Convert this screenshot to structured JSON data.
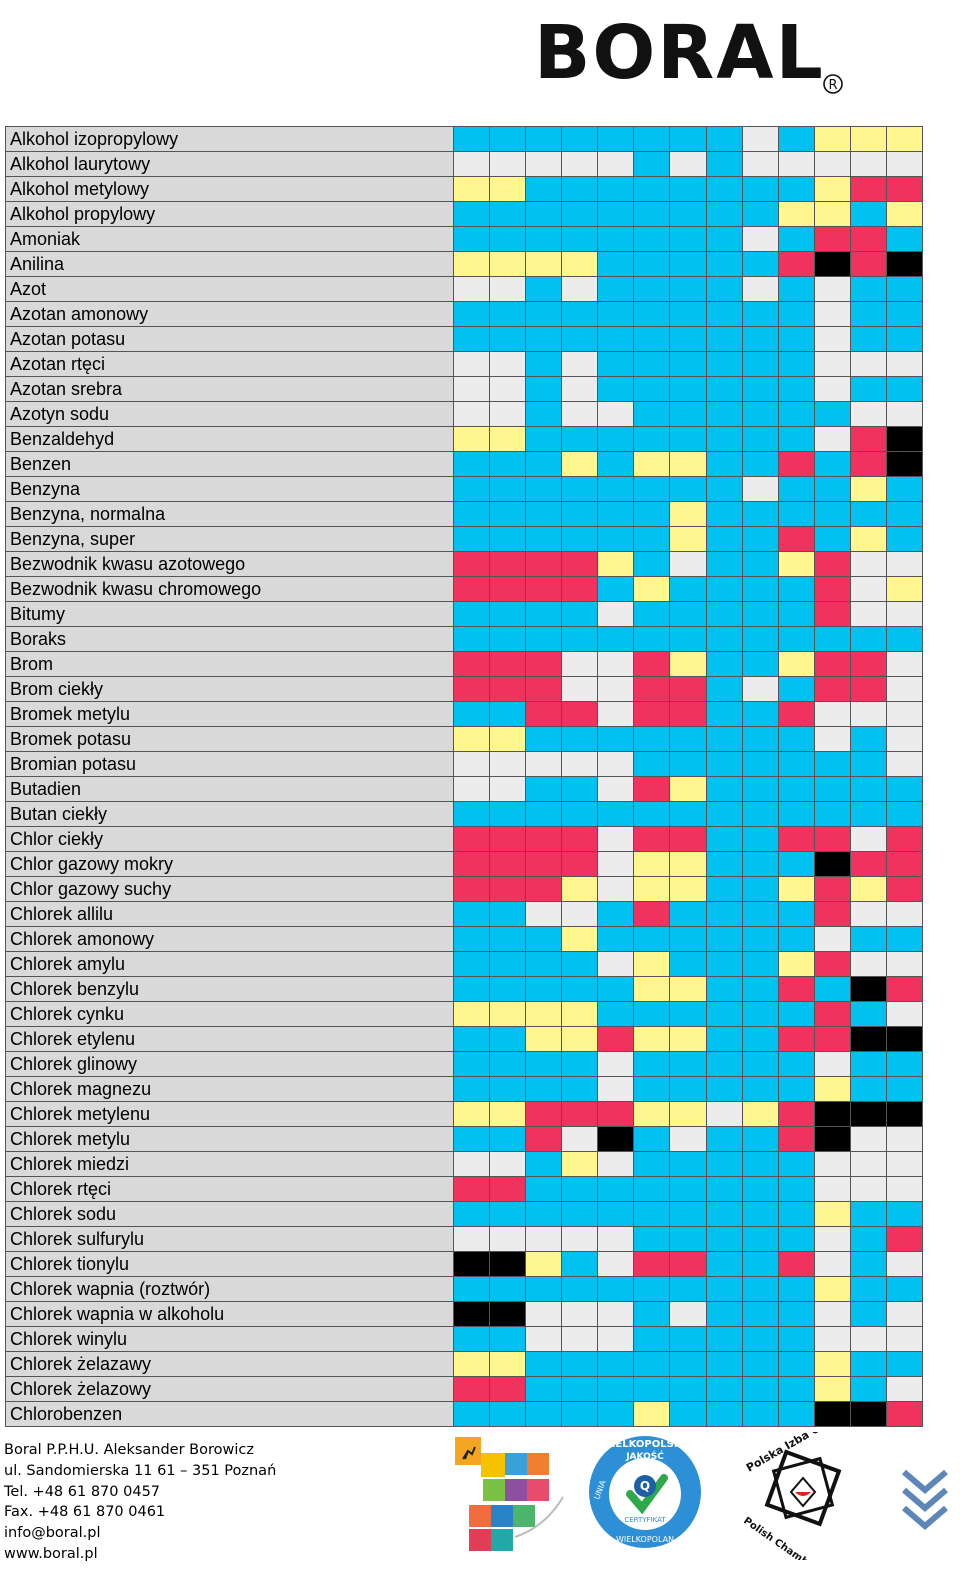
{
  "header": {
    "logo_text": "BORAL",
    "logo_mark": "®"
  },
  "palette": {
    "B": "#00c1ef",
    "G": "#ececec",
    "Y": "#fff68f",
    "R": "#f0325e",
    "K": "#000000"
  },
  "rows": [
    {
      "name": "Alkohol izopropylowy",
      "cells": "BBBBBBBBGBYYY"
    },
    {
      "name": "Alkohol laurytowy",
      "cells": "GGGGGBGBGGGGG"
    },
    {
      "name": "Alkohol metylowy",
      "cells": "YYBBBBBBBBYRR"
    },
    {
      "name": "Alkohol propylowy",
      "cells": "BBBBBBBBBYYBY"
    },
    {
      "name": "Amoniak",
      "cells": "BBBBBBBBGBRRB"
    },
    {
      "name": "Anilina",
      "cells": "YYYYBBBBBRKRK"
    },
    {
      "name": "Azot",
      "cells": "GGBGBBBBGBGBB"
    },
    {
      "name": "Azotan amonowy",
      "cells": "BBBBBBBBBBGBB"
    },
    {
      "name": "Azotan potasu",
      "cells": "BBBBBBBBBBGBB"
    },
    {
      "name": "Azotan rtęci",
      "cells": "GGBGBBBBBBGGG"
    },
    {
      "name": "Azotan srebra",
      "cells": "GGBGBBBBBBGBB"
    },
    {
      "name": "Azotyn sodu",
      "cells": "GGBGGBBBBBBGG"
    },
    {
      "name": "Benzaldehyd",
      "cells": "YYBBBBBBBBGRK"
    },
    {
      "name": "Benzen",
      "cells": "BBBYBYYBBRBRK"
    },
    {
      "name": "Benzyna",
      "cells": "BBBBBBBBGBBYB"
    },
    {
      "name": "Benzyna, normalna",
      "cells": "BBBBBBYBBBBBB"
    },
    {
      "name": "Benzyna, super",
      "cells": "BBBBBBYBBRBYB"
    },
    {
      "name": "Bezwodnik kwasu azotowego",
      "cells": "RRRRYBGBBYRGG"
    },
    {
      "name": "Bezwodnik kwasu chromowego",
      "cells": "RRRRBYBBBBRGY"
    },
    {
      "name": "Bitumy",
      "cells": "BBBBGBBBBBRGG"
    },
    {
      "name": "Boraks",
      "cells": "BBBBBBBBBBBBB"
    },
    {
      "name": "Brom",
      "cells": "RRRGGRYBBYRRG"
    },
    {
      "name": "Brom ciekły",
      "cells": "RRRGGRRBGBRRG"
    },
    {
      "name": "Bromek metylu",
      "cells": "BBRRGRRBBRGGG"
    },
    {
      "name": "Bromek potasu",
      "cells": "YYBBBBBBBBGBG"
    },
    {
      "name": "Bromian potasu",
      "cells": "GGGGGBBBBBBBG"
    },
    {
      "name": "Butadien",
      "cells": "GGBBGRYBBBBBB"
    },
    {
      "name": "Butan ciekły",
      "cells": "BBBBBBBBBBBBB"
    },
    {
      "name": "Chlor ciekły",
      "cells": "RRRRGRRBBRRGR"
    },
    {
      "name": "Chlor gazowy mokry",
      "cells": "RRRRGYYBBBKRR"
    },
    {
      "name": "Chlor gazowy suchy",
      "cells": "RRRYGYYBBYRYR"
    },
    {
      "name": "Chlorek allilu",
      "cells": "BBGGBRBBBBRGG"
    },
    {
      "name": "Chlorek amonowy",
      "cells": "BBBYBBBBBBGBB"
    },
    {
      "name": "Chlorek amylu",
      "cells": "BBBBGYBBBYRGG"
    },
    {
      "name": "Chlorek benzylu",
      "cells": "BBBBBYYBBRBKR"
    },
    {
      "name": "Chlorek cynku",
      "cells": "YYYYBBBBBBRBG"
    },
    {
      "name": "Chlorek etylenu",
      "cells": "BBYYRYYBBRRKK"
    },
    {
      "name": "Chlorek glinowy",
      "cells": "BBBBGBBBBBGBB"
    },
    {
      "name": "Chlorek magnezu",
      "cells": "BBBBGBBBBBYBB"
    },
    {
      "name": "Chlorek metylenu",
      "cells": "YYRRRYYGYRKKK"
    },
    {
      "name": "Chlorek metylu",
      "cells": "BBRGKBGBBRKGG"
    },
    {
      "name": "Chlorek miedzi",
      "cells": "GGBYGBBBBBGGG"
    },
    {
      "name": "Chlorek rtęci",
      "cells": "RRBBBBBBBBGGG"
    },
    {
      "name": "Chlorek sodu",
      "cells": "BBBBBBBBBBYBB"
    },
    {
      "name": "Chlorek sulfurylu",
      "cells": "GGGGGBBBBBGBR"
    },
    {
      "name": "Chlorek tionylu",
      "cells": "KKYBGRRBBRGBG"
    },
    {
      "name": "Chlorek wapnia (roztwór)",
      "cells": "BBBBBBBBBBYBB"
    },
    {
      "name": "Chlorek wapnia w alkoholu",
      "cells": "KKGGGBGBBBGBG"
    },
    {
      "name": "Chlorek winylu",
      "cells": "BBGGGBBBBBGGG"
    },
    {
      "name": "Chlorek żelazawy",
      "cells": "YYBBBBBBBBYBB"
    },
    {
      "name": "Chlorek żelazowy",
      "cells": "RRBBBBBBBBYBG"
    },
    {
      "name": "Chlorobenzen",
      "cells": "BBBBBYBBBBKKR"
    }
  ],
  "footer": {
    "company": "Boral P.P.H.U. Aleksander Borowicz",
    "address": "ul. Sandomierska 11 61 – 351 Poznań",
    "tel": "Tel. +48 61 870 0457",
    "fax": "Fax. +48 61 870 0461",
    "email": "info@boral.pl",
    "web": "www.boral.pl"
  },
  "badges": {
    "quality_top": "WIELKOPOLSKA",
    "quality_mid": "JAKOŚĆ",
    "quality_ribbon": "CERTYFIKAT",
    "quality_side": "UNIA",
    "quality_bottom": "WIELKOPOLAN",
    "chamber_pl": "Polska Izba Opakowań",
    "chamber_en": "Polish Chamber of Packaging"
  }
}
